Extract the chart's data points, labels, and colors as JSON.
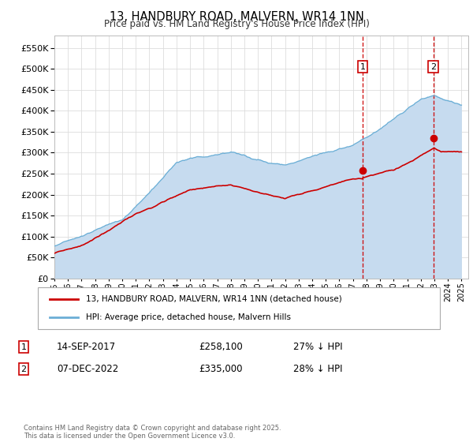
{
  "title": "13, HANDBURY ROAD, MALVERN, WR14 1NN",
  "subtitle": "Price paid vs. HM Land Registry's House Price Index (HPI)",
  "ylim": [
    0,
    580000
  ],
  "yticks": [
    0,
    50000,
    100000,
    150000,
    200000,
    250000,
    300000,
    350000,
    400000,
    450000,
    500000,
    550000
  ],
  "xlim_start": 1995.0,
  "xlim_end": 2025.5,
  "hpi_color": "#6baed6",
  "hpi_fill_color": "#c6dbef",
  "price_color": "#cc0000",
  "dashed_color": "#cc0000",
  "sale1_x": 2017.71,
  "sale1_y": 258100,
  "sale2_x": 2022.93,
  "sale2_y": 335000,
  "marker1_label": "1",
  "marker2_label": "2",
  "annotation1": [
    "1",
    "14-SEP-2017",
    "£258,100",
    "27% ↓ HPI"
  ],
  "annotation2": [
    "2",
    "07-DEC-2022",
    "£335,000",
    "28% ↓ HPI"
  ],
  "legend_label1": "13, HANDBURY ROAD, MALVERN, WR14 1NN (detached house)",
  "legend_label2": "HPI: Average price, detached house, Malvern Hills",
  "footnote": "Contains HM Land Registry data © Crown copyright and database right 2025.\nThis data is licensed under the Open Government Licence v3.0.",
  "background_color": "#ffffff",
  "grid_color": "#dddddd"
}
